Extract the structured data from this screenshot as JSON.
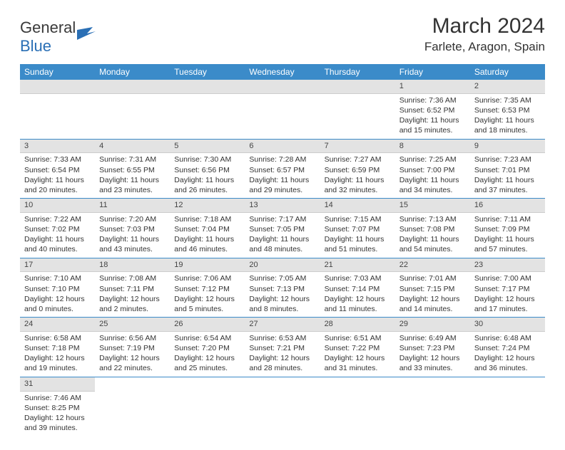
{
  "logo": {
    "text1": "General",
    "text2": "Blue"
  },
  "title": "March 2024",
  "location": "Farlete, Aragon, Spain",
  "colors": {
    "header_bg": "#3b8bc9",
    "header_text": "#ffffff",
    "daynum_bg": "#e3e3e3",
    "row_border": "#3b8bc9",
    "logo_blue": "#2a6fb5"
  },
  "weekdays": [
    "Sunday",
    "Monday",
    "Tuesday",
    "Wednesday",
    "Thursday",
    "Friday",
    "Saturday"
  ],
  "weeks": [
    [
      {
        "empty": true
      },
      {
        "empty": true
      },
      {
        "empty": true
      },
      {
        "empty": true
      },
      {
        "empty": true
      },
      {
        "num": "1",
        "sunrise": "Sunrise: 7:36 AM",
        "sunset": "Sunset: 6:52 PM",
        "daylight": "Daylight: 11 hours and 15 minutes."
      },
      {
        "num": "2",
        "sunrise": "Sunrise: 7:35 AM",
        "sunset": "Sunset: 6:53 PM",
        "daylight": "Daylight: 11 hours and 18 minutes."
      }
    ],
    [
      {
        "num": "3",
        "sunrise": "Sunrise: 7:33 AM",
        "sunset": "Sunset: 6:54 PM",
        "daylight": "Daylight: 11 hours and 20 minutes."
      },
      {
        "num": "4",
        "sunrise": "Sunrise: 7:31 AM",
        "sunset": "Sunset: 6:55 PM",
        "daylight": "Daylight: 11 hours and 23 minutes."
      },
      {
        "num": "5",
        "sunrise": "Sunrise: 7:30 AM",
        "sunset": "Sunset: 6:56 PM",
        "daylight": "Daylight: 11 hours and 26 minutes."
      },
      {
        "num": "6",
        "sunrise": "Sunrise: 7:28 AM",
        "sunset": "Sunset: 6:57 PM",
        "daylight": "Daylight: 11 hours and 29 minutes."
      },
      {
        "num": "7",
        "sunrise": "Sunrise: 7:27 AM",
        "sunset": "Sunset: 6:59 PM",
        "daylight": "Daylight: 11 hours and 32 minutes."
      },
      {
        "num": "8",
        "sunrise": "Sunrise: 7:25 AM",
        "sunset": "Sunset: 7:00 PM",
        "daylight": "Daylight: 11 hours and 34 minutes."
      },
      {
        "num": "9",
        "sunrise": "Sunrise: 7:23 AM",
        "sunset": "Sunset: 7:01 PM",
        "daylight": "Daylight: 11 hours and 37 minutes."
      }
    ],
    [
      {
        "num": "10",
        "sunrise": "Sunrise: 7:22 AM",
        "sunset": "Sunset: 7:02 PM",
        "daylight": "Daylight: 11 hours and 40 minutes."
      },
      {
        "num": "11",
        "sunrise": "Sunrise: 7:20 AM",
        "sunset": "Sunset: 7:03 PM",
        "daylight": "Daylight: 11 hours and 43 minutes."
      },
      {
        "num": "12",
        "sunrise": "Sunrise: 7:18 AM",
        "sunset": "Sunset: 7:04 PM",
        "daylight": "Daylight: 11 hours and 46 minutes."
      },
      {
        "num": "13",
        "sunrise": "Sunrise: 7:17 AM",
        "sunset": "Sunset: 7:05 PM",
        "daylight": "Daylight: 11 hours and 48 minutes."
      },
      {
        "num": "14",
        "sunrise": "Sunrise: 7:15 AM",
        "sunset": "Sunset: 7:07 PM",
        "daylight": "Daylight: 11 hours and 51 minutes."
      },
      {
        "num": "15",
        "sunrise": "Sunrise: 7:13 AM",
        "sunset": "Sunset: 7:08 PM",
        "daylight": "Daylight: 11 hours and 54 minutes."
      },
      {
        "num": "16",
        "sunrise": "Sunrise: 7:11 AM",
        "sunset": "Sunset: 7:09 PM",
        "daylight": "Daylight: 11 hours and 57 minutes."
      }
    ],
    [
      {
        "num": "17",
        "sunrise": "Sunrise: 7:10 AM",
        "sunset": "Sunset: 7:10 PM",
        "daylight": "Daylight: 12 hours and 0 minutes."
      },
      {
        "num": "18",
        "sunrise": "Sunrise: 7:08 AM",
        "sunset": "Sunset: 7:11 PM",
        "daylight": "Daylight: 12 hours and 2 minutes."
      },
      {
        "num": "19",
        "sunrise": "Sunrise: 7:06 AM",
        "sunset": "Sunset: 7:12 PM",
        "daylight": "Daylight: 12 hours and 5 minutes."
      },
      {
        "num": "20",
        "sunrise": "Sunrise: 7:05 AM",
        "sunset": "Sunset: 7:13 PM",
        "daylight": "Daylight: 12 hours and 8 minutes."
      },
      {
        "num": "21",
        "sunrise": "Sunrise: 7:03 AM",
        "sunset": "Sunset: 7:14 PM",
        "daylight": "Daylight: 12 hours and 11 minutes."
      },
      {
        "num": "22",
        "sunrise": "Sunrise: 7:01 AM",
        "sunset": "Sunset: 7:15 PM",
        "daylight": "Daylight: 12 hours and 14 minutes."
      },
      {
        "num": "23",
        "sunrise": "Sunrise: 7:00 AM",
        "sunset": "Sunset: 7:17 PM",
        "daylight": "Daylight: 12 hours and 17 minutes."
      }
    ],
    [
      {
        "num": "24",
        "sunrise": "Sunrise: 6:58 AM",
        "sunset": "Sunset: 7:18 PM",
        "daylight": "Daylight: 12 hours and 19 minutes."
      },
      {
        "num": "25",
        "sunrise": "Sunrise: 6:56 AM",
        "sunset": "Sunset: 7:19 PM",
        "daylight": "Daylight: 12 hours and 22 minutes."
      },
      {
        "num": "26",
        "sunrise": "Sunrise: 6:54 AM",
        "sunset": "Sunset: 7:20 PM",
        "daylight": "Daylight: 12 hours and 25 minutes."
      },
      {
        "num": "27",
        "sunrise": "Sunrise: 6:53 AM",
        "sunset": "Sunset: 7:21 PM",
        "daylight": "Daylight: 12 hours and 28 minutes."
      },
      {
        "num": "28",
        "sunrise": "Sunrise: 6:51 AM",
        "sunset": "Sunset: 7:22 PM",
        "daylight": "Daylight: 12 hours and 31 minutes."
      },
      {
        "num": "29",
        "sunrise": "Sunrise: 6:49 AM",
        "sunset": "Sunset: 7:23 PM",
        "daylight": "Daylight: 12 hours and 33 minutes."
      },
      {
        "num": "30",
        "sunrise": "Sunrise: 6:48 AM",
        "sunset": "Sunset: 7:24 PM",
        "daylight": "Daylight: 12 hours and 36 minutes."
      }
    ],
    [
      {
        "num": "31",
        "sunrise": "Sunrise: 7:46 AM",
        "sunset": "Sunset: 8:25 PM",
        "daylight": "Daylight: 12 hours and 39 minutes."
      },
      {
        "empty": true
      },
      {
        "empty": true
      },
      {
        "empty": true
      },
      {
        "empty": true
      },
      {
        "empty": true
      },
      {
        "empty": true
      }
    ]
  ]
}
